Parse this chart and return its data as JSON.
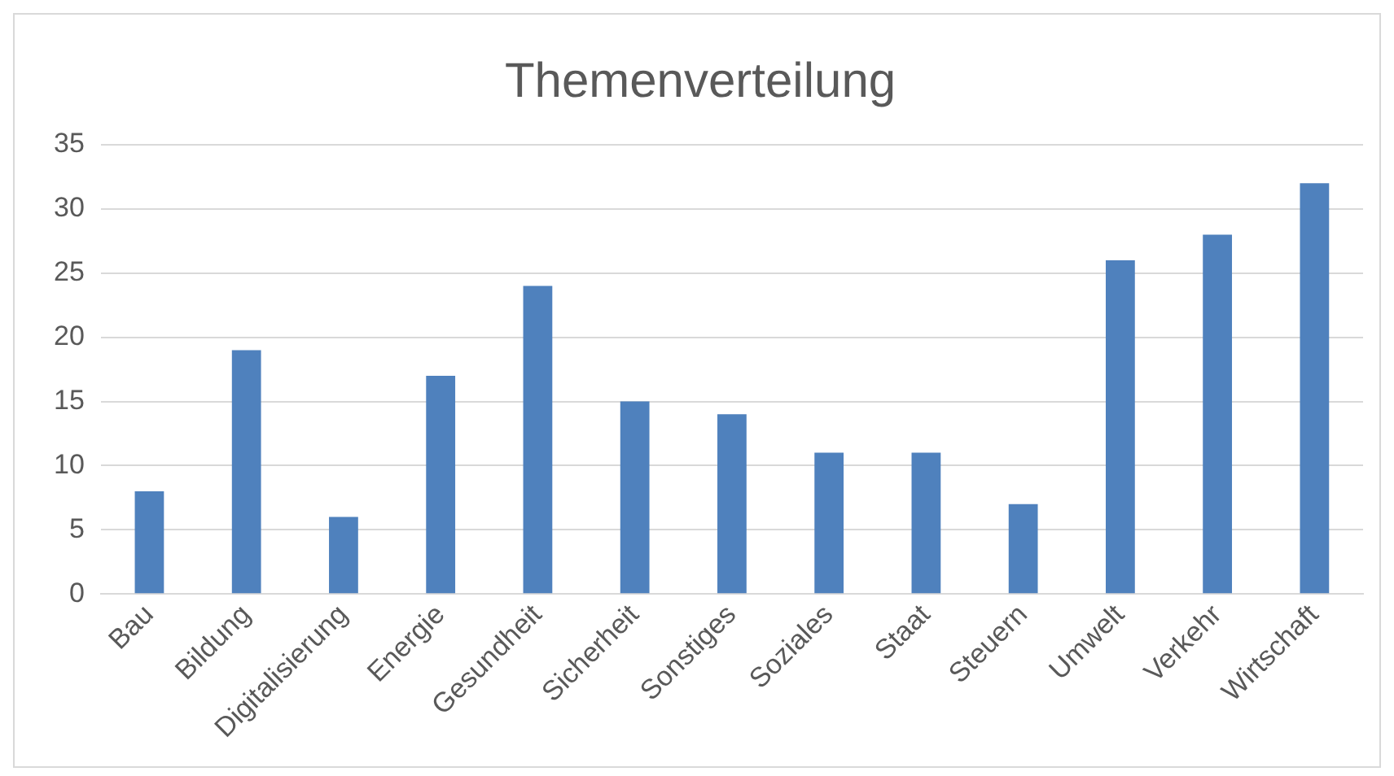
{
  "chart_data": {
    "type": "bar",
    "title": "Themenverteilung",
    "categories": [
      "Bau",
      "Bildung",
      "Digitalisierung",
      "Energie",
      "Gesundheit",
      "Sicherheit",
      "Sonstiges",
      "Soziales",
      "Staat",
      "Steuern",
      "Umwelt",
      "Verkehr",
      "Wirtschaft"
    ],
    "values": [
      8,
      19,
      6,
      17,
      24,
      15,
      14,
      11,
      11,
      7,
      26,
      28,
      32
    ],
    "color": "#4f81bd",
    "ylim": [
      0,
      35
    ],
    "yticks": [
      0,
      5,
      10,
      15,
      20,
      25,
      30,
      35
    ],
    "grid": "y",
    "legend": false
  }
}
